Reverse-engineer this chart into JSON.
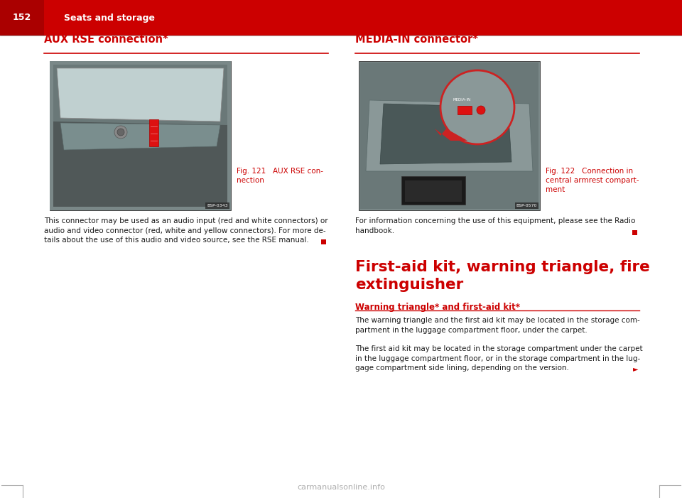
{
  "page_number": "152",
  "section_title": "Seats and storage",
  "header_bg": "#cc0000",
  "header_text_color": "#ffffff",
  "red_color": "#cc0000",
  "black_color": "#1a1a1a",
  "bg_color": "#ffffff",
  "left_section_title": "AUX RSE connection*",
  "left_fig_caption_line1": "Fig. 121   AUX RSE con-",
  "left_fig_caption_line2": "nection",
  "left_body_lines": [
    "This connector may be used as an audio input (red and white connectors) or",
    "audio and video connector (red, white and yellow connectors). For more de-",
    "tails about the use of this audio and video source, see the RSE manual."
  ],
  "right_section_title": "MEDIA-IN connector*",
  "right_fig_caption_line1": "Fig. 122   Connection in",
  "right_fig_caption_line2": "central armrest compart-",
  "right_fig_caption_line3": "ment",
  "right_body_lines": [
    "For information concerning the use of this equipment, please see the Radio",
    "handbook."
  ],
  "big_section_title_line1": "First-aid kit, warning triangle, fire",
  "big_section_title_line2": "extinguisher",
  "sub_section_title": "Warning triangle* and first-aid kit*",
  "sub_body1_lines": [
    "The warning triangle and the first aid kit may be located in the storage com-",
    "partment in the luggage compartment floor, under the carpet."
  ],
  "sub_body2_lines": [
    "The first aid kit may be located in the storage compartment under the carpet",
    "in the luggage compartment floor, or in the storage compartment in the lug-",
    "gage compartment side lining, depending on the version."
  ],
  "corner_marks_color": "#aaaaaa",
  "watermark_text": "carmanualsonline.info",
  "left_img_bsp": "BSP-0343",
  "right_img_bsp": "BSP-0570"
}
